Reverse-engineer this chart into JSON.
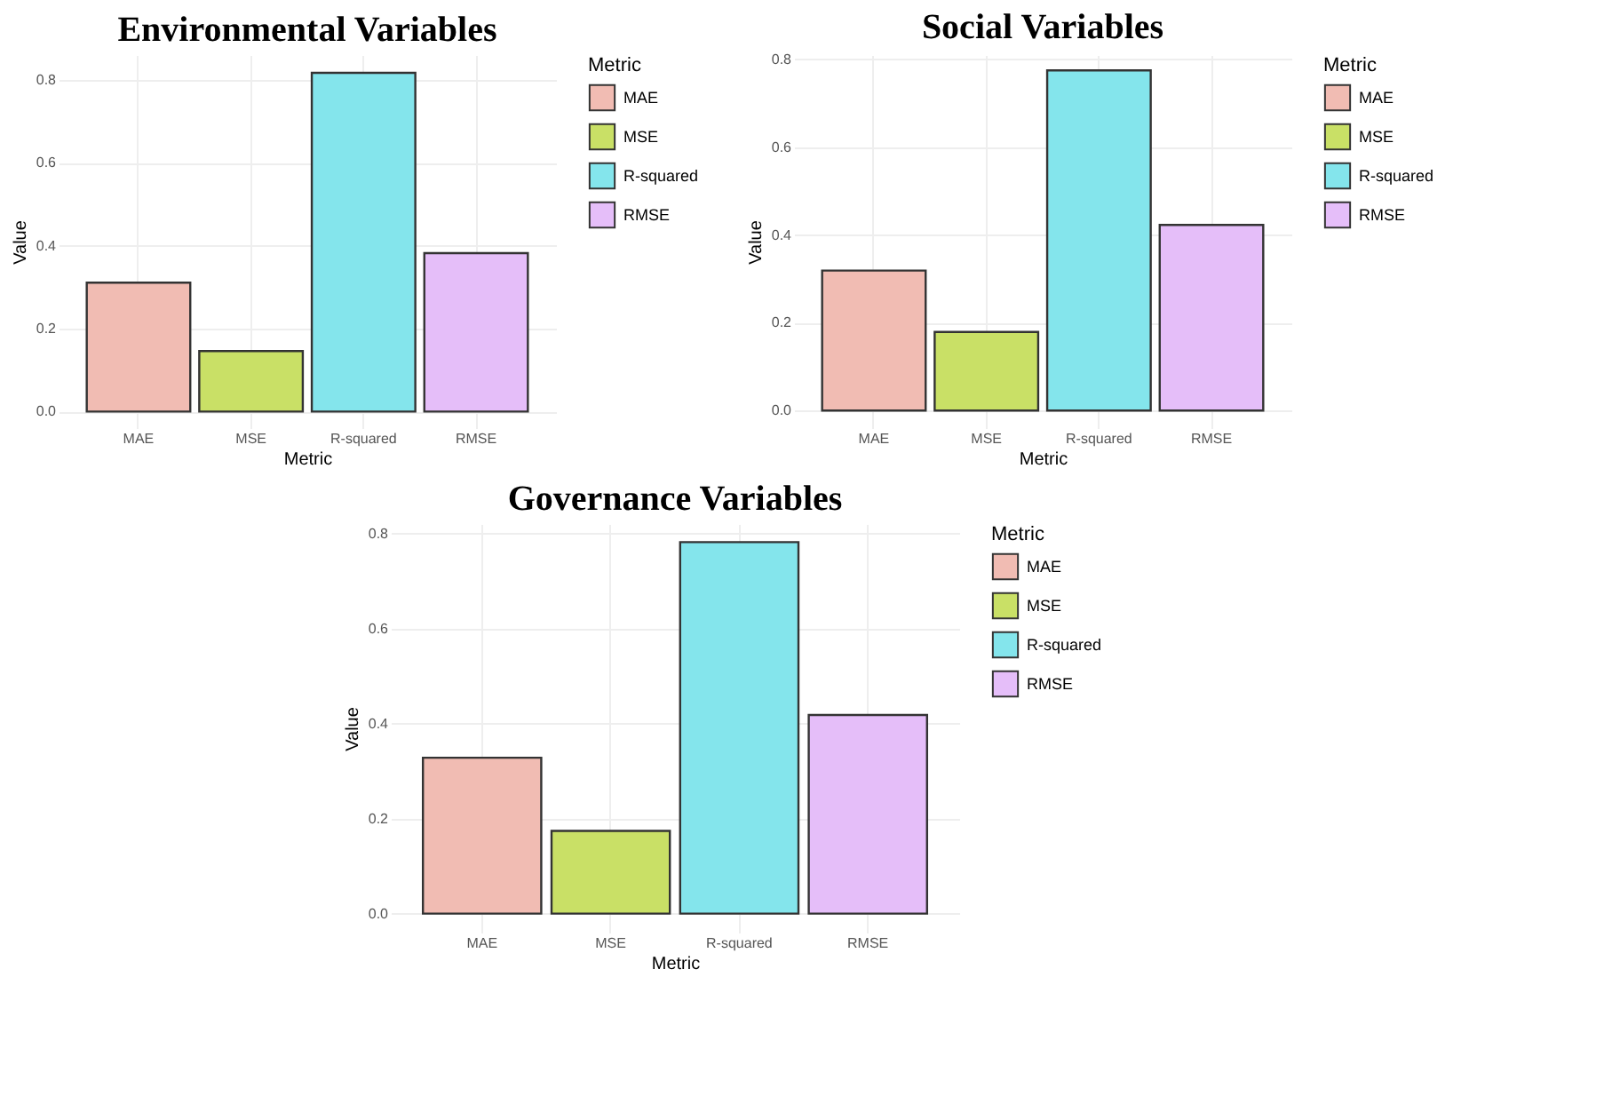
{
  "chart_data": [
    {
      "type": "bar",
      "title": "Environmental Variables",
      "xlabel": "Metric",
      "ylabel": "Value",
      "legend_title": "Metric",
      "categories": [
        "MAE",
        "MSE",
        "R-squared",
        "RMSE"
      ],
      "stacked": true,
      "series": [
        {
          "name": "MAE",
          "color": "#f1bcb3",
          "values": [
            0.311,
            null,
            null,
            null
          ]
        },
        {
          "name": "MSE",
          "color": "#c9e066",
          "values": [
            null,
            0.146,
            null,
            null
          ]
        },
        {
          "name": "R-squared",
          "color": "#84e5ec",
          "values": [
            null,
            null,
            0.817,
            null
          ]
        },
        {
          "name": "RMSE",
          "color": "#e5bef9",
          "values": [
            null,
            null,
            null,
            0.382
          ]
        }
      ],
      "ylim": [
        -0.04,
        0.86
      ],
      "yticks": [
        {
          "value": 0,
          "label": "0.0"
        },
        0.2,
        0.4,
        0.6,
        0.8
      ],
      "grid": true,
      "legend": "right"
    },
    {
      "type": "bar",
      "title": "Social Variables",
      "xlabel": "Metric",
      "ylabel": "Value",
      "legend_title": "Metric",
      "categories": [
        "MAE",
        "MSE",
        "R-squared",
        "RMSE"
      ],
      "stacked": true,
      "series": [
        {
          "name": "MAE",
          "color": "#f1bcb3",
          "values": [
            0.319,
            null,
            null,
            null
          ]
        },
        {
          "name": "MSE",
          "color": "#c9e066",
          "values": [
            null,
            0.179,
            null,
            null
          ]
        },
        {
          "name": "R-squared",
          "color": "#84e5ec",
          "values": [
            null,
            null,
            0.775,
            null
          ]
        },
        {
          "name": "RMSE",
          "color": "#e5bef9",
          "values": [
            null,
            null,
            null,
            0.423
          ]
        }
      ],
      "ylim": [
        -0.04,
        0.81
      ],
      "yticks": [
        {
          "value": 0,
          "label": "0.0"
        },
        0.2,
        0.4,
        0.6,
        0.8
      ],
      "grid": true,
      "legend": "right"
    },
    {
      "type": "bar",
      "title": "Governance Variables",
      "xlabel": "Metric",
      "ylabel": "Value",
      "legend_title": "Metric",
      "categories": [
        "MAE",
        "MSE",
        "R-squared",
        "RMSE"
      ],
      "stacked": true,
      "series": [
        {
          "name": "MAE",
          "color": "#f1bcb3",
          "values": [
            0.328,
            null,
            null,
            null
          ]
        },
        {
          "name": "MSE",
          "color": "#c9e066",
          "values": [
            null,
            0.174,
            null,
            null
          ]
        },
        {
          "name": "R-squared",
          "color": "#84e5ec",
          "values": [
            null,
            null,
            0.782,
            null
          ]
        },
        {
          "name": "RMSE",
          "color": "#e5bef9",
          "values": [
            null,
            null,
            null,
            0.418
          ]
        }
      ],
      "ylim": [
        -0.04,
        0.82
      ],
      "yticks": [
        {
          "value": 0,
          "label": "0.0"
        },
        0.2,
        0.4,
        0.6,
        0.8
      ],
      "grid": true,
      "legend": "right"
    }
  ]
}
